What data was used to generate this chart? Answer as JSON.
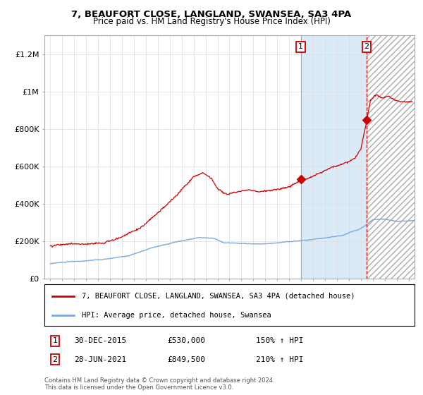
{
  "title1": "7, BEAUFORT CLOSE, LANGLAND, SWANSEA, SA3 4PA",
  "title2": "Price paid vs. HM Land Registry's House Price Index (HPI)",
  "legend_line1": "7, BEAUFORT CLOSE, LANGLAND, SWANSEA, SA3 4PA (detached house)",
  "legend_line2": "HPI: Average price, detached house, Swansea",
  "sale1_date": "30-DEC-2015",
  "sale1_price": "£530,000",
  "sale1_hpi": "150% ↑ HPI",
  "sale2_date": "28-JUN-2021",
  "sale2_price": "£849,500",
  "sale2_hpi": "210% ↑ HPI",
  "footnote": "Contains HM Land Registry data © Crown copyright and database right 2024.\nThis data is licensed under the Open Government Licence v3.0.",
  "red_color": "#cc0000",
  "blue_color": "#7aaadd",
  "shading_color": "#daeaf7",
  "ylim": [
    0,
    1300000
  ],
  "yticks": [
    0,
    200000,
    400000,
    600000,
    800000,
    1000000,
    1200000
  ],
  "ytick_labels": [
    "£0",
    "£200K",
    "£400K",
    "£600K",
    "£800K",
    "£1M",
    "£1.2M"
  ],
  "sale1_x": 2015.97,
  "sale1_y": 530000,
  "sale2_x": 2021.49,
  "sale2_y": 849500,
  "xmin": 1994.5,
  "xmax": 2025.5
}
